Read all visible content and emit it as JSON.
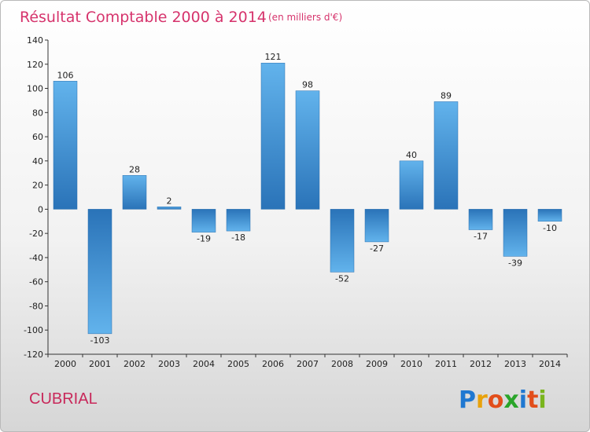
{
  "chart_data": {
    "type": "bar",
    "title": "Résultat Comptable 2000 à 2014",
    "subtitle": "(en milliers d'€)",
    "categories": [
      "2000",
      "2001",
      "2002",
      "2003",
      "2004",
      "2005",
      "2006",
      "2007",
      "2008",
      "2009",
      "2010",
      "2011",
      "2012",
      "2013",
      "2014"
    ],
    "values": [
      106,
      -103,
      28,
      2,
      -19,
      -18,
      121,
      98,
      -52,
      -27,
      40,
      89,
      -17,
      -39,
      -10
    ],
    "value_labels": [
      "106",
      "-103",
      "28",
      "2",
      "-19",
      "-18",
      "121",
      "98",
      "-52",
      "-27",
      "40",
      "89",
      "-17",
      "-39",
      "-10"
    ],
    "ylim": [
      -120,
      140
    ],
    "yticks": [
      140,
      120,
      100,
      80,
      60,
      40,
      20,
      0,
      -20,
      -40,
      -60,
      -80,
      -100,
      -120
    ],
    "ytick_labels": [
      "140",
      "120",
      "100",
      "80",
      "60",
      "40",
      "20",
      "0",
      "-20",
      "-40",
      "-60",
      "-80",
      "-100",
      "-120"
    ],
    "xlabel": "",
    "ylabel": "",
    "grid": false,
    "legend": "none"
  },
  "commune": "CUBRIAL",
  "logo": {
    "text": "Proxiti",
    "letters": [
      "P",
      "r",
      "o",
      "x",
      "i",
      "t",
      "i"
    ],
    "colors": [
      "#1f78d1",
      "#e8a20c",
      "#e24e1b",
      "#2aa52a",
      "#1f78d1",
      "#e24e1b",
      "#7ab51d"
    ]
  },
  "colors": {
    "bar_dark": "#2a73b8",
    "bar_light": "#62b3ec",
    "axis": "#333333",
    "title": "#d6336c"
  }
}
